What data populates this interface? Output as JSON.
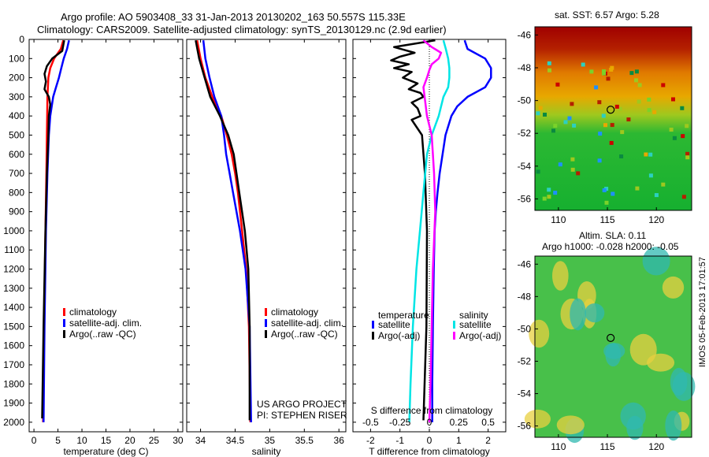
{
  "header": {
    "line1": "Argo profile: AO 5903408_33 31-Jan-2013 20130202_163 50.557S 115.33E",
    "line2": "Climatology: CARS2009. Satellite-adjusted climatology: synTS_20130129.nc (2.9d earlier)"
  },
  "colors": {
    "climatology": "#ff0000",
    "satellite": "#0000ff",
    "argo": "#000000",
    "sal_satellite": "#00e5e5",
    "sal_argo": "#ff00ff"
  },
  "chart_data": [
    {
      "type": "line",
      "id": "temperature",
      "xlabel": "temperature (deg C)",
      "ylabel": "",
      "xlim": [
        -1,
        31
      ],
      "ylim": [
        0,
        2050
      ],
      "xticks": [
        0,
        5,
        10,
        15,
        20,
        25,
        30
      ],
      "yticks": [
        0,
        100,
        200,
        300,
        400,
        500,
        600,
        700,
        800,
        900,
        1000,
        1100,
        1200,
        1300,
        1400,
        1500,
        1600,
        1700,
        1800,
        1900,
        2000
      ],
      "legend": [
        "climatology",
        "satellite-adj. clim.",
        "Argo(..raw -QC)"
      ],
      "series": [
        {
          "name": "climatology",
          "depth": [
            5,
            50,
            100,
            150,
            200,
            250,
            300,
            400,
            500,
            700,
            1000,
            1500,
            2000
          ],
          "values": [
            6.1,
            5.6,
            4.2,
            3.4,
            3.0,
            2.9,
            2.8,
            2.75,
            2.7,
            2.6,
            2.4,
            2.1,
            1.9
          ]
        },
        {
          "name": "satellite-adj. clim.",
          "depth": [
            5,
            50,
            100,
            150,
            200,
            250,
            300,
            400,
            500,
            700,
            1000,
            1500,
            2000
          ],
          "values": [
            7.3,
            6.9,
            6.2,
            5.7,
            5.2,
            4.6,
            4.0,
            3.4,
            3.1,
            2.8,
            2.5,
            2.2,
            2.0
          ]
        },
        {
          "name": "Argo(..raw -QC)",
          "depth": [
            5,
            60,
            100,
            140,
            180,
            220,
            260,
            300,
            340,
            400,
            500,
            700,
            1000,
            1500,
            1980
          ],
          "values": [
            6.3,
            5.9,
            3.8,
            2.7,
            2.2,
            2.5,
            2.2,
            3.1,
            3.4,
            3.1,
            3.0,
            2.7,
            2.4,
            2.0,
            1.7
          ]
        }
      ]
    },
    {
      "type": "line",
      "id": "salinity",
      "xlabel": "salinity",
      "ylabel": "",
      "xlim": [
        33.8,
        36.1
      ],
      "ylim": [
        0,
        2050
      ],
      "xticks": [
        34,
        34.5,
        35,
        35.5,
        36
      ],
      "legend": [
        "climatology",
        "satellite-adj. clim.",
        "Argo(..raw -QC)"
      ],
      "annotations": [
        "US ARGO PROJECT",
        "PI: STEPHEN RISER"
      ],
      "series": [
        {
          "name": "climatology",
          "depth": [
            5,
            100,
            200,
            300,
            400,
            500,
            600,
            700,
            800,
            1000,
            1200,
            1500,
            2000
          ],
          "values": [
            33.95,
            34.0,
            34.07,
            34.17,
            34.3,
            34.38,
            34.45,
            34.5,
            34.54,
            34.6,
            34.66,
            34.7,
            34.72
          ]
        },
        {
          "name": "satellite-adj. clim.",
          "depth": [
            5,
            100,
            200,
            300,
            400,
            500,
            600,
            700,
            800,
            1000,
            1200,
            1500,
            2000
          ],
          "values": [
            34.04,
            34.07,
            34.13,
            34.2,
            34.3,
            34.34,
            34.37,
            34.42,
            34.47,
            34.57,
            34.65,
            34.71,
            34.73
          ]
        },
        {
          "name": "Argo(..raw -QC)",
          "depth": [
            5,
            100,
            200,
            300,
            400,
            500,
            600,
            700,
            800,
            1000,
            1200,
            1500,
            1990
          ],
          "values": [
            33.93,
            33.98,
            34.06,
            34.14,
            34.28,
            34.4,
            34.48,
            34.52,
            34.56,
            34.64,
            34.69,
            34.71,
            34.71
          ]
        }
      ]
    },
    {
      "type": "line",
      "id": "difference",
      "xlabel": "T difference from climatology",
      "x2label": "S difference from climatology",
      "xlim": [
        -2.6,
        2.6
      ],
      "ylim": [
        0,
        2050
      ],
      "xticks": [
        -2,
        -1,
        0,
        1,
        2
      ],
      "x2ticks": [
        {
          "v": -0.5,
          "label": "-0.5"
        },
        {
          "v": -0.25,
          "label": "-0.25"
        },
        {
          "v": 0,
          "label": "0"
        },
        {
          "v": 0.25,
          "label": "0.25"
        },
        {
          "v": 0.5,
          "label": "0.5"
        }
      ],
      "legend": {
        "temperature": "temperature",
        "salinity": "salinity",
        "satellite": "satellite",
        "argo": "Argo(-adj)"
      },
      "series": [
        {
          "name": "T satellite",
          "depth": [
            5,
            50,
            100,
            150,
            200,
            250,
            300,
            350,
            400,
            500,
            600,
            700,
            800,
            900,
            1000,
            1200,
            1500,
            1800,
            2000
          ],
          "values": [
            1.2,
            1.3,
            1.9,
            2.1,
            2.1,
            1.9,
            1.3,
            0.95,
            0.75,
            0.55,
            0.45,
            0.35,
            0.28,
            0.22,
            0.18,
            0.15,
            0.12,
            0.1,
            0.1
          ]
        },
        {
          "name": "T Argo(-adj)",
          "depth": [
            5,
            40,
            70,
            90,
            110,
            130,
            150,
            170,
            200,
            230,
            260,
            280,
            300,
            330,
            360,
            400,
            420,
            500,
            700,
            1000,
            1500,
            1990
          ],
          "values": [
            0.2,
            -1.2,
            -0.5,
            -1.0,
            -1.3,
            -0.7,
            -1.2,
            -0.6,
            -0.9,
            -0.4,
            -0.7,
            -0.3,
            -0.2,
            -0.6,
            -0.4,
            -0.3,
            -0.6,
            -0.25,
            -0.15,
            -0.08,
            -0.1,
            -0.2
          ]
        },
        {
          "name": "S satellite",
          "depth": [
            5,
            50,
            100,
            150,
            200,
            250,
            300,
            400,
            500,
            600,
            800,
            1000,
            1200,
            1500,
            1800,
            2000
          ],
          "values": [
            0.12,
            0.14,
            0.16,
            0.17,
            0.17,
            0.16,
            0.12,
            0.08,
            0.02,
            -0.02,
            -0.05,
            -0.08,
            -0.11,
            -0.14,
            -0.16,
            -0.17
          ]
        },
        {
          "name": "S Argo(-adj)",
          "depth": [
            5,
            40,
            70,
            100,
            130,
            160,
            200,
            250,
            300,
            400,
            500,
            700,
            900,
            1200,
            1500,
            1800,
            2000
          ],
          "values": [
            -0.05,
            0.02,
            0.1,
            0.08,
            0.02,
            0.0,
            -0.02,
            -0.05,
            -0.04,
            -0.02,
            0.02,
            0.04,
            0.05,
            0.03,
            0.02,
            0.01,
            0.0
          ]
        }
      ]
    }
  ],
  "maps": {
    "sst": {
      "title": "sat. SST: 6.57  Argo: 5.28",
      "yticks": [
        "-46",
        "-48",
        "-50",
        "-52",
        "-54",
        "-56"
      ],
      "xticks": [
        "110",
        "115",
        "120"
      ],
      "marker": {
        "lon": 115.33,
        "lat": -50.56
      }
    },
    "sla": {
      "title1": "Altim. SLA: 0.11",
      "title2": "Argo h1000: -0.028 h2000: -0.05",
      "yticks": [
        "-46",
        "-48",
        "-50",
        "-52",
        "-54",
        "-56"
      ],
      "xticks": [
        "110",
        "115",
        "120"
      ],
      "marker": {
        "lon": 115.33,
        "lat": -50.56
      }
    }
  },
  "footer": {
    "stamp": "IMOS 05-Feb-2013 17:01:57"
  }
}
